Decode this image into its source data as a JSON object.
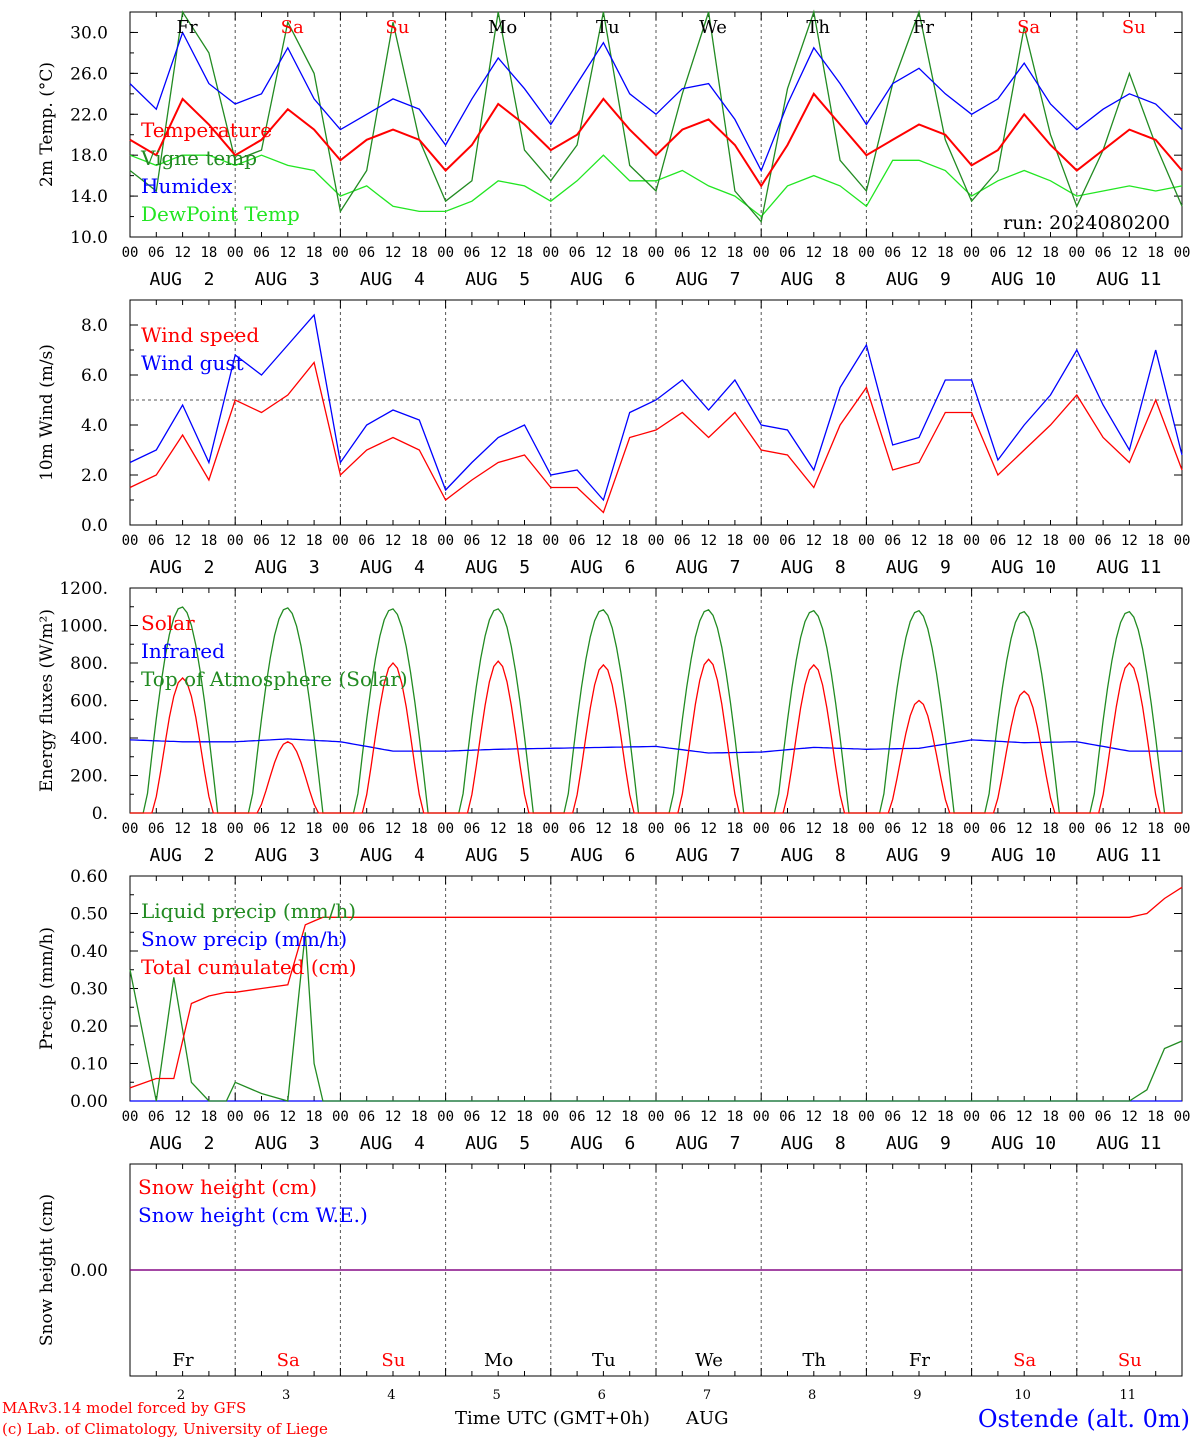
{
  "footer": {
    "credit_line1": "MARv3.14 model forced by GFS",
    "credit_line2": "(c) Lab. of Climatology, University of Liege",
    "xaxis_title": "Time UTC (GMT+0h)",
    "month_label": "AUG",
    "station": "Ostende (alt. 0m)"
  },
  "colors": {
    "red": "#ff0000",
    "blue": "#0000ff",
    "dark_green": "#228b22",
    "light_green": "#22e622",
    "weekend": "#ff0000",
    "weekday": "#000000",
    "purple": "#800080"
  },
  "days": [
    {
      "dow": "Fr",
      "date": "AUG  2",
      "num": "2",
      "weekend": false
    },
    {
      "dow": "Sa",
      "date": "AUG  3",
      "num": "3",
      "weekend": true
    },
    {
      "dow": "Su",
      "date": "AUG  4",
      "num": "4",
      "weekend": true
    },
    {
      "dow": "Mo",
      "date": "AUG  5",
      "num": "5",
      "weekend": false
    },
    {
      "dow": "Tu",
      "date": "AUG  6",
      "num": "6",
      "weekend": false
    },
    {
      "dow": "We",
      "date": "AUG  7",
      "num": "7",
      "weekend": false
    },
    {
      "dow": "Th",
      "date": "AUG  8",
      "num": "8",
      "weekend": false
    },
    {
      "dow": "Fr",
      "date": "AUG  9",
      "num": "9",
      "weekend": false
    },
    {
      "dow": "Sa",
      "date": "AUG 10",
      "num": "10",
      "weekend": true
    },
    {
      "dow": "Su",
      "date": "AUG 11",
      "num": "11",
      "weekend": true
    }
  ],
  "hour_ticks": [
    "00",
    "06",
    "12",
    "18"
  ],
  "chart_data": [
    {
      "type": "line",
      "ylabel": "2m Temp. (°C)",
      "ylim": [
        10,
        32
      ],
      "yticks": [
        "10.0",
        "14.0",
        "18.0",
        "22.0",
        "26.0",
        "30.0"
      ],
      "ytick_values": [
        10,
        14,
        18,
        22,
        26,
        30
      ],
      "annotation": "run: 2024080200",
      "x_hours": [
        0,
        6,
        12,
        18,
        24,
        30,
        36,
        42,
        48,
        54,
        60,
        66,
        72,
        78,
        84,
        90,
        96,
        102,
        108,
        114,
        120,
        126,
        132,
        138,
        144,
        150,
        156,
        162,
        168,
        174,
        180,
        186,
        192,
        198,
        204,
        210,
        216,
        222,
        228,
        234,
        240
      ],
      "series": [
        {
          "name": "Temperature",
          "color": "#ff0000",
          "values": [
            19.5,
            18.0,
            23.5,
            21.0,
            18.0,
            19.5,
            22.5,
            20.5,
            17.5,
            19.5,
            20.5,
            19.5,
            16.5,
            19.0,
            23.0,
            21.0,
            18.5,
            20.0,
            23.5,
            20.5,
            18.0,
            20.5,
            21.5,
            19.0,
            15.0,
            19.0,
            24.0,
            21.0,
            18.0,
            19.5,
            21.0,
            20.0,
            17.0,
            18.5,
            22.0,
            19.0,
            16.5,
            18.5,
            20.5,
            19.5,
            16.5
          ]
        },
        {
          "name": "Vigne temp",
          "color": "#228b22",
          "values": [
            16.5,
            14.5,
            32.5,
            28.0,
            17.5,
            18.5,
            31.0,
            26.0,
            12.5,
            16.5,
            31.0,
            19.5,
            13.5,
            15.5,
            32.0,
            18.5,
            15.5,
            19.0,
            32.5,
            17.0,
            14.5,
            24.0,
            32.0,
            14.5,
            11.5,
            24.5,
            32.5,
            17.5,
            14.5,
            25.0,
            32.0,
            19.5,
            13.5,
            16.5,
            30.5,
            20.0,
            13.0,
            18.5,
            26.0,
            19.0,
            13.0
          ]
        },
        {
          "name": "Humidex",
          "color": "#0000ff",
          "values": [
            25.0,
            22.5,
            30.0,
            25.0,
            23.0,
            24.0,
            28.5,
            23.5,
            20.5,
            22.0,
            23.5,
            22.5,
            19.0,
            23.5,
            27.5,
            24.5,
            21.0,
            25.0,
            29.0,
            24.0,
            22.0,
            24.5,
            25.0,
            21.5,
            16.5,
            23.0,
            28.5,
            25.0,
            21.0,
            25.0,
            26.5,
            24.0,
            22.0,
            23.5,
            27.0,
            23.0,
            20.5,
            22.5,
            24.0,
            23.0,
            20.5
          ]
        },
        {
          "name": "DewPoint Temp",
          "color": "#22e622",
          "values": [
            18.0,
            17.0,
            18.0,
            18.0,
            17.0,
            18.0,
            17.0,
            16.5,
            14.0,
            15.0,
            13.0,
            12.5,
            12.5,
            13.5,
            15.5,
            15.0,
            13.5,
            15.5,
            18.0,
            15.5,
            15.5,
            16.5,
            15.0,
            14.0,
            12.0,
            15.0,
            16.0,
            15.0,
            13.0,
            17.5,
            17.5,
            16.5,
            14.0,
            15.5,
            16.5,
            15.5,
            14.0,
            14.5,
            15.0,
            14.5,
            15.0
          ]
        }
      ]
    },
    {
      "type": "line",
      "ylabel": "10m Wind (m/s)",
      "ylim": [
        0,
        9
      ],
      "yticks": [
        "0.0",
        "2.0",
        "4.0",
        "6.0",
        "8.0"
      ],
      "ytick_values": [
        0,
        2,
        4,
        6,
        8
      ],
      "hline": 5,
      "x_hours": [
        0,
        6,
        12,
        18,
        24,
        30,
        36,
        42,
        48,
        54,
        60,
        66,
        72,
        78,
        84,
        90,
        96,
        102,
        108,
        114,
        120,
        126,
        132,
        138,
        144,
        150,
        156,
        162,
        168,
        174,
        180,
        186,
        192,
        198,
        204,
        210,
        216,
        222,
        228,
        234,
        240
      ],
      "series": [
        {
          "name": "Wind speed",
          "color": "#ff0000",
          "values": [
            1.5,
            2.0,
            3.6,
            1.8,
            5.0,
            4.5,
            5.2,
            6.5,
            2.0,
            3.0,
            3.5,
            3.0,
            1.0,
            1.8,
            2.5,
            2.8,
            1.5,
            1.5,
            0.5,
            3.5,
            3.8,
            4.5,
            3.5,
            4.5,
            3.0,
            2.8,
            1.5,
            4.0,
            5.5,
            2.2,
            2.5,
            4.5,
            4.5,
            2.0,
            3.0,
            4.0,
            5.2,
            3.5,
            2.5,
            5.0,
            2.2
          ]
        },
        {
          "name": "Wind gust",
          "color": "#0000ff",
          "values": [
            2.5,
            3.0,
            4.8,
            2.5,
            6.8,
            6.0,
            7.2,
            8.4,
            2.5,
            4.0,
            4.6,
            4.2,
            1.4,
            2.5,
            3.5,
            4.0,
            2.0,
            2.2,
            1.0,
            4.5,
            5.0,
            5.8,
            4.6,
            5.8,
            4.0,
            3.8,
            2.2,
            5.5,
            7.2,
            3.2,
            3.5,
            5.8,
            5.8,
            2.6,
            4.0,
            5.2,
            7.0,
            4.8,
            3.0,
            7.0,
            2.8
          ]
        }
      ]
    },
    {
      "type": "line",
      "ylabel": "Energy fluxes (W/m²)",
      "ylim": [
        0,
        1200
      ],
      "yticks": [
        "0.",
        "200.",
        "400.",
        "600.",
        "800.",
        "1000.",
        "1200."
      ],
      "ytick_values": [
        0,
        200,
        400,
        600,
        800,
        1000,
        1200
      ],
      "daily_peaks": {
        "solar_peak": [
          720,
          380,
          800,
          810,
          790,
          820,
          790,
          600,
          650,
          800
        ],
        "toa_peak": [
          1100,
          1095,
          1090,
          1090,
          1085,
          1085,
          1080,
          1080,
          1075,
          1075
        ]
      },
      "x_hours": [
        0,
        12,
        24,
        36,
        48,
        60,
        72,
        84,
        96,
        108,
        120,
        132,
        144,
        156,
        168,
        180,
        192,
        204,
        216,
        228,
        240
      ],
      "series": [
        {
          "name": "Solar",
          "color": "#ff0000",
          "values": [
            0,
            720,
            0,
            380,
            0,
            800,
            0,
            810,
            0,
            790,
            0,
            820,
            0,
            790,
            0,
            600,
            0,
            650,
            0,
            800,
            0
          ]
        },
        {
          "name": "Infrared",
          "color": "#0000ff",
          "values": [
            390,
            380,
            380,
            395,
            380,
            330,
            330,
            340,
            345,
            350,
            355,
            320,
            325,
            350,
            340,
            345,
            390,
            375,
            380,
            330,
            330
          ]
        },
        {
          "name": "Top of Atmosphere (Solar)",
          "color": "#228b22",
          "values": [
            0,
            1100,
            0,
            1095,
            0,
            1090,
            0,
            1090,
            0,
            1085,
            0,
            1085,
            0,
            1080,
            0,
            1080,
            0,
            1075,
            0,
            1075,
            0
          ]
        }
      ]
    },
    {
      "type": "line",
      "ylabel": "Precip (mm/h)",
      "ylim": [
        0,
        0.6
      ],
      "yticks": [
        "0.00",
        "0.10",
        "0.20",
        "0.30",
        "0.40",
        "0.50",
        "0.60"
      ],
      "ytick_values": [
        0,
        0.1,
        0.2,
        0.3,
        0.4,
        0.5,
        0.6
      ],
      "x_hours": [
        0,
        6,
        10,
        14,
        18,
        22,
        24,
        30,
        36,
        40,
        42,
        44,
        48,
        60,
        72,
        96,
        120,
        144,
        168,
        192,
        216,
        228,
        232,
        236,
        240
      ],
      "series": [
        {
          "name": "Liquid precip (mm/h)",
          "color": "#228b22",
          "values": [
            0.35,
            0.0,
            0.33,
            0.05,
            0.0,
            0.0,
            0.05,
            0.02,
            0.0,
            0.45,
            0.1,
            0.0,
            0.0,
            0.0,
            0.0,
            0.0,
            0.0,
            0.0,
            0.0,
            0.0,
            0.0,
            0.0,
            0.03,
            0.14,
            0.16
          ]
        },
        {
          "name": "Snow precip (mm/h)",
          "color": "#0000ff",
          "values": [
            0,
            0,
            0,
            0,
            0,
            0,
            0,
            0,
            0,
            0,
            0,
            0,
            0,
            0,
            0,
            0,
            0,
            0,
            0,
            0,
            0,
            0,
            0,
            0,
            0
          ]
        },
        {
          "name": "Total cumulated (cm)",
          "color": "#ff0000",
          "values": [
            0.035,
            0.06,
            0.06,
            0.26,
            0.28,
            0.29,
            0.29,
            0.3,
            0.31,
            0.47,
            0.48,
            0.49,
            0.49,
            0.49,
            0.49,
            0.49,
            0.49,
            0.49,
            0.49,
            0.49,
            0.49,
            0.49,
            0.5,
            0.54,
            0.57
          ]
        }
      ]
    },
    {
      "type": "line",
      "ylabel": "Snow height (cm)",
      "ylim": [
        -1,
        1
      ],
      "yticks": [
        "0.00"
      ],
      "ytick_values": [
        0
      ],
      "x_hours": [
        0,
        240
      ],
      "series": [
        {
          "name": "Snow height (cm)",
          "color": "#ff0000",
          "values": [
            0,
            0
          ]
        },
        {
          "name": "Snow height (cm W.E.)",
          "color": "#0000ff",
          "values": [
            0,
            0
          ]
        }
      ]
    }
  ]
}
